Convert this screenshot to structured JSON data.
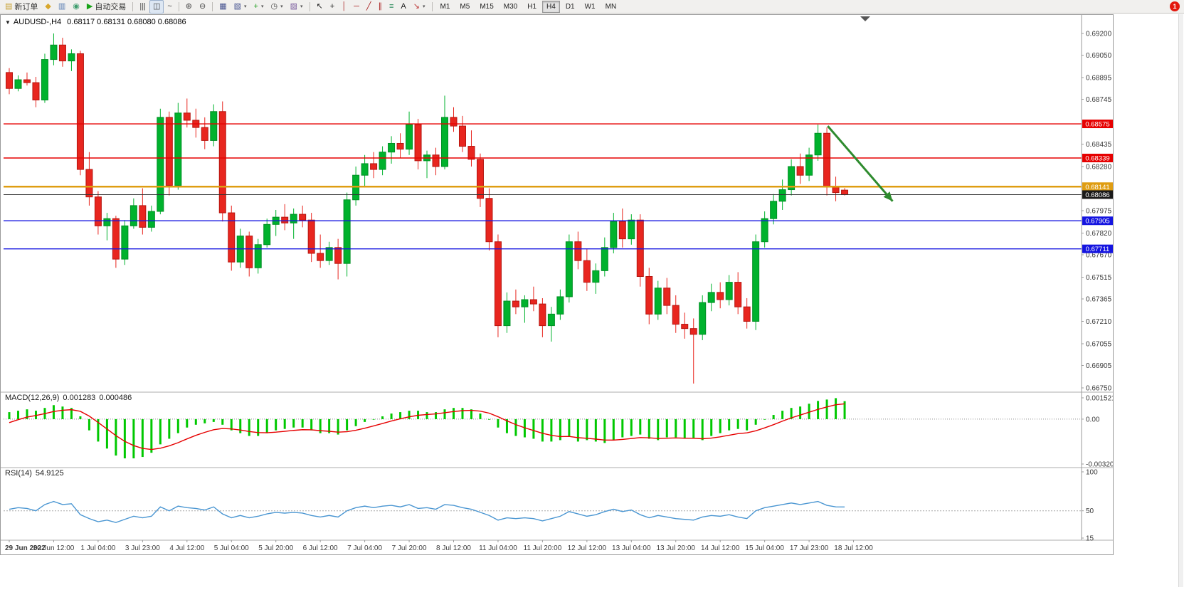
{
  "window": {
    "notification_badge": "1"
  },
  "toolbar": {
    "groups": [
      {
        "items": [
          {
            "name": "new-order-button",
            "icon": "new-order-icon",
            "label": "新订单"
          },
          {
            "name": "metaeditor-button",
            "icon": "metaeditor-icon"
          },
          {
            "name": "market-watch-button",
            "icon": "market-watch-icon"
          },
          {
            "name": "navigator-button",
            "icon": "navigator-icon"
          },
          {
            "name": "autotrading-button",
            "icon": "autotrading-icon",
            "label": "自动交易"
          }
        ]
      },
      {
        "items": [
          {
            "name": "bar-chart-button",
            "icon": "bar-chart-icon"
          },
          {
            "name": "candlestick-button",
            "icon": "candlestick-icon",
            "active": true
          },
          {
            "name": "line-chart-button",
            "icon": "line-chart-icon"
          }
        ]
      },
      {
        "items": [
          {
            "name": "zoom-in-button",
            "icon": "zoom-in-icon"
          },
          {
            "name": "zoom-out-button",
            "icon": "zoom-out-icon"
          }
        ]
      },
      {
        "items": [
          {
            "name": "tile-windows-button",
            "icon": "tile-windows-icon"
          },
          {
            "name": "new-chart-button",
            "icon": "new-chart-icon",
            "dropdown": true
          },
          {
            "name": "indicators-button",
            "icon": "indicators-icon",
            "dropdown": true
          },
          {
            "name": "periods-button",
            "icon": "clock-icon",
            "dropdown": true
          },
          {
            "name": "templates-button",
            "icon": "template-icon",
            "dropdown": true
          }
        ]
      },
      {
        "items": [
          {
            "name": "cursor-button",
            "icon": "cursor-icon"
          },
          {
            "name": "crosshair-button",
            "icon": "crosshair-icon"
          },
          {
            "name": "vertical-line-button",
            "icon": "vertical-line-icon"
          },
          {
            "name": "horizontal-line-button",
            "icon": "horizontal-line-icon"
          },
          {
            "name": "trendline-button",
            "icon": "trendline-icon"
          },
          {
            "name": "channel-button",
            "icon": "channel-icon"
          },
          {
            "name": "fibonacci-button",
            "icon": "fibonacci-icon"
          },
          {
            "name": "text-button",
            "icon": "text-icon"
          },
          {
            "name": "arrows-button",
            "icon": "arrows-icon",
            "dropdown": true
          }
        ]
      },
      {
        "items": [
          {
            "name": "tf-m1-button",
            "label": "M1",
            "tf": true
          },
          {
            "name": "tf-m5-button",
            "label": "M5",
            "tf": true
          },
          {
            "name": "tf-m15-button",
            "label": "M15",
            "tf": true
          },
          {
            "name": "tf-m30-button",
            "label": "M30",
            "tf": true
          },
          {
            "name": "tf-h1-button",
            "label": "H1",
            "tf": true
          },
          {
            "name": "tf-h4-button",
            "label": "H4",
            "tf": true,
            "active": true
          },
          {
            "name": "tf-d1-button",
            "label": "D1",
            "tf": true
          },
          {
            "name": "tf-w1-button",
            "label": "W1",
            "tf": true
          },
          {
            "name": "tf-mn-button",
            "label": "MN",
            "tf": true
          }
        ]
      }
    ]
  },
  "chart": {
    "collapse_glyph": "▼",
    "symbol_period": "AUDUSD-,H4",
    "ohlc_text": "0.68117 0.68131 0.68080 0.68086"
  },
  "macd": {
    "name": "MACD(12,26,9)",
    "value_main": "0.001283",
    "value_signal": "0.000486"
  },
  "rsi": {
    "name": "RSI(14)",
    "value": "54.9125"
  },
  "chart_data": {
    "type": "candlestick",
    "symbol": "AUDUSD-",
    "timeframe": "H4",
    "ohlc_header": {
      "open": 0.68117,
      "high": 0.68131,
      "low": 0.6808,
      "close": 0.68086
    },
    "ylim": [
      0.6675,
      0.692
    ],
    "y_ticks": [
      "0.69200",
      "0.69050",
      "0.68895",
      "0.68745",
      "0.68435",
      "0.68280",
      "0.67975",
      "0.67820",
      "0.67670",
      "0.67515",
      "0.67365",
      "0.67210",
      "0.67055",
      "0.66905",
      "0.66750"
    ],
    "x_labels": [
      "29 Jun 2022",
      "30 Jun 12:00",
      "1 Jul 04:00",
      "3 Jul 23:00",
      "4 Jul 12:00",
      "5 Jul 04:00",
      "5 Jul 20:00",
      "6 Jul 12:00",
      "7 Jul 04:00",
      "7 Jul 20:00",
      "8 Jul 12:00",
      "11 Jul 04:00",
      "11 Jul 20:00",
      "12 Jul 12:00",
      "13 Jul 04:00",
      "13 Jul 20:00",
      "14 Jul 12:00",
      "15 Jul 04:00",
      "17 Jul 23:00",
      "18 Jul 12:00"
    ],
    "x_label_step_candles": 5,
    "candles_ohlc": [
      [
        0.6893,
        0.6896,
        0.6878,
        0.6882
      ],
      [
        0.6882,
        0.6891,
        0.688,
        0.6888
      ],
      [
        0.6888,
        0.6893,
        0.6884,
        0.6886
      ],
      [
        0.6886,
        0.689,
        0.6869,
        0.6874
      ],
      [
        0.6874,
        0.6906,
        0.6872,
        0.6902
      ],
      [
        0.6902,
        0.692,
        0.6898,
        0.6912
      ],
      [
        0.6912,
        0.6917,
        0.6897,
        0.6901
      ],
      [
        0.6901,
        0.6909,
        0.6894,
        0.6906
      ],
      [
        0.6906,
        0.6908,
        0.6822,
        0.6826
      ],
      [
        0.6826,
        0.6838,
        0.6801,
        0.6807
      ],
      [
        0.6807,
        0.6811,
        0.6781,
        0.6787
      ],
      [
        0.6787,
        0.6796,
        0.6777,
        0.6792
      ],
      [
        0.6792,
        0.6794,
        0.6758,
        0.6764
      ],
      [
        0.6764,
        0.6791,
        0.676,
        0.6787
      ],
      [
        0.6787,
        0.6806,
        0.6785,
        0.6801
      ],
      [
        0.6801,
        0.6813,
        0.6781,
        0.6786
      ],
      [
        0.6786,
        0.6801,
        0.6783,
        0.6797
      ],
      [
        0.6797,
        0.6868,
        0.6795,
        0.6862
      ],
      [
        0.6862,
        0.6866,
        0.6808,
        0.6815
      ],
      [
        0.6815,
        0.6872,
        0.6812,
        0.6865
      ],
      [
        0.6865,
        0.6875,
        0.6855,
        0.686
      ],
      [
        0.686,
        0.6868,
        0.6848,
        0.6855
      ],
      [
        0.6855,
        0.6862,
        0.684,
        0.6846
      ],
      [
        0.6846,
        0.6871,
        0.6842,
        0.6866
      ],
      [
        0.6866,
        0.6873,
        0.679,
        0.6796
      ],
      [
        0.6796,
        0.6801,
        0.6756,
        0.6762
      ],
      [
        0.6762,
        0.6785,
        0.6758,
        0.678
      ],
      [
        0.678,
        0.6783,
        0.6752,
        0.6758
      ],
      [
        0.6758,
        0.6778,
        0.6754,
        0.6774
      ],
      [
        0.6774,
        0.6792,
        0.6772,
        0.6788
      ],
      [
        0.6788,
        0.6798,
        0.678,
        0.6793
      ],
      [
        0.6793,
        0.6802,
        0.6784,
        0.6789
      ],
      [
        0.6789,
        0.6799,
        0.6778,
        0.6795
      ],
      [
        0.6795,
        0.6801,
        0.6786,
        0.6791
      ],
      [
        0.6791,
        0.6796,
        0.6762,
        0.6768
      ],
      [
        0.6768,
        0.6781,
        0.6758,
        0.6763
      ],
      [
        0.6763,
        0.6776,
        0.676,
        0.6772
      ],
      [
        0.6772,
        0.6778,
        0.675,
        0.6761
      ],
      [
        0.6761,
        0.681,
        0.6752,
        0.6805
      ],
      [
        0.6805,
        0.6828,
        0.6801,
        0.6822
      ],
      [
        0.6822,
        0.6836,
        0.6814,
        0.683
      ],
      [
        0.683,
        0.6838,
        0.682,
        0.6826
      ],
      [
        0.6826,
        0.6842,
        0.6822,
        0.6838
      ],
      [
        0.6838,
        0.6849,
        0.683,
        0.6844
      ],
      [
        0.6844,
        0.6851,
        0.6834,
        0.684
      ],
      [
        0.684,
        0.6866,
        0.6836,
        0.6857
      ],
      [
        0.6857,
        0.6861,
        0.6826,
        0.6832
      ],
      [
        0.6832,
        0.6839,
        0.682,
        0.6836
      ],
      [
        0.6836,
        0.6841,
        0.6822,
        0.6828
      ],
      [
        0.6828,
        0.6877,
        0.6826,
        0.6862
      ],
      [
        0.6862,
        0.6869,
        0.6852,
        0.6856
      ],
      [
        0.6856,
        0.6863,
        0.6838,
        0.6842
      ],
      [
        0.6842,
        0.6853,
        0.6828,
        0.6833
      ],
      [
        0.6833,
        0.6837,
        0.68,
        0.6806
      ],
      [
        0.6806,
        0.6813,
        0.677,
        0.6776
      ],
      [
        0.6776,
        0.6781,
        0.671,
        0.6718
      ],
      [
        0.6718,
        0.6741,
        0.6713,
        0.6735
      ],
      [
        0.6735,
        0.6743,
        0.6726,
        0.6731
      ],
      [
        0.6731,
        0.6739,
        0.672,
        0.6736
      ],
      [
        0.6736,
        0.6745,
        0.6728,
        0.6733
      ],
      [
        0.6733,
        0.6737,
        0.671,
        0.6718
      ],
      [
        0.6718,
        0.6731,
        0.6707,
        0.6726
      ],
      [
        0.6726,
        0.6743,
        0.6722,
        0.6738
      ],
      [
        0.6738,
        0.6781,
        0.6734,
        0.6776
      ],
      [
        0.6776,
        0.6783,
        0.6757,
        0.6763
      ],
      [
        0.6763,
        0.6771,
        0.6742,
        0.6748
      ],
      [
        0.6748,
        0.6761,
        0.674,
        0.6756
      ],
      [
        0.6756,
        0.6779,
        0.6752,
        0.6772
      ],
      [
        0.6772,
        0.6796,
        0.6768,
        0.679
      ],
      [
        0.679,
        0.6799,
        0.6772,
        0.6778
      ],
      [
        0.6778,
        0.6795,
        0.6774,
        0.6791
      ],
      [
        0.6791,
        0.6795,
        0.6745,
        0.6752
      ],
      [
        0.6752,
        0.6758,
        0.6719,
        0.6726
      ],
      [
        0.6726,
        0.6749,
        0.6722,
        0.6744
      ],
      [
        0.6744,
        0.6751,
        0.6726,
        0.6732
      ],
      [
        0.6732,
        0.6739,
        0.6713,
        0.6719
      ],
      [
        0.6719,
        0.6727,
        0.6709,
        0.6716
      ],
      [
        0.6716,
        0.6723,
        0.6678,
        0.6712
      ],
      [
        0.6712,
        0.6739,
        0.6708,
        0.6734
      ],
      [
        0.6734,
        0.6747,
        0.6728,
        0.6741
      ],
      [
        0.6741,
        0.6748,
        0.673,
        0.6736
      ],
      [
        0.6736,
        0.6753,
        0.6732,
        0.6748
      ],
      [
        0.6748,
        0.6755,
        0.6726,
        0.6731
      ],
      [
        0.6731,
        0.6737,
        0.6716,
        0.6721
      ],
      [
        0.6721,
        0.6781,
        0.6715,
        0.6776
      ],
      [
        0.6776,
        0.6797,
        0.6772,
        0.6792
      ],
      [
        0.6792,
        0.6809,
        0.6788,
        0.6804
      ],
      [
        0.6804,
        0.6819,
        0.6798,
        0.6812
      ],
      [
        0.6812,
        0.6833,
        0.6808,
        0.6828
      ],
      [
        0.6828,
        0.6837,
        0.6816,
        0.6822
      ],
      [
        0.6822,
        0.6841,
        0.6818,
        0.6836
      ],
      [
        0.6836,
        0.6857,
        0.6832,
        0.6851
      ],
      [
        0.6851,
        0.6855,
        0.6808,
        0.6814
      ],
      [
        0.6814,
        0.6821,
        0.6804,
        0.681
      ],
      [
        0.68117,
        0.68131,
        0.6808,
        0.68086
      ]
    ],
    "levels": [
      {
        "price": 0.68575,
        "label": "0.68575",
        "color": "#e60000",
        "width": 1.4
      },
      {
        "price": 0.68339,
        "label": "0.68339",
        "color": "#e60000",
        "width": 1.4
      },
      {
        "price": 0.68141,
        "label": "0.68141",
        "color": "#df9d12",
        "width": 2.6
      },
      {
        "price": 0.67905,
        "label": "0.67905",
        "color": "#1414e0",
        "width": 1.4
      },
      {
        "price": 0.67711,
        "label": "0.67711",
        "color": "#1414e0",
        "width": 1.4
      }
    ],
    "current_price": {
      "price": 0.68086,
      "label": "0.68086",
      "color": "#1a1a1a"
    },
    "arrow": {
      "from_index": 92.1,
      "from_price": 0.6856,
      "to_index": 99.4,
      "to_price": 0.6804,
      "color": "#2e8b2e"
    },
    "colors": {
      "bull": "#00b22d",
      "bear": "#e8261f",
      "bull_stroke": "#008f24",
      "bear_stroke": "#b51610"
    },
    "macd_panel": {
      "type": "bar+line",
      "values": [
        0.0005,
        0.0006,
        0.0007,
        0.0006,
        0.0008,
        0.001,
        0.0009,
        0.0008,
        0.0002,
        -0.0008,
        -0.0016,
        -0.0021,
        -0.0026,
        -0.0028,
        -0.0028,
        -0.0027,
        -0.0024,
        -0.0018,
        -0.0014,
        -0.001,
        -0.0006,
        -0.0004,
        -0.0003,
        -0.0002,
        -0.0004,
        -0.0008,
        -0.001,
        -0.0012,
        -0.0012,
        -0.001,
        -0.0008,
        -0.0007,
        -0.0006,
        -0.0006,
        -0.0008,
        -0.001,
        -0.001,
        -0.0011,
        -0.0008,
        -0.0005,
        -0.0002,
        0.0,
        0.0002,
        0.0004,
        0.0005,
        0.0006,
        0.0006,
        0.0005,
        0.0005,
        0.0007,
        0.0008,
        0.0008,
        0.0007,
        0.0004,
        0.0,
        -0.0006,
        -0.001,
        -0.0012,
        -0.0013,
        -0.0014,
        -0.0016,
        -0.0016,
        -0.0015,
        -0.0012,
        -0.0016,
        -0.0015,
        -0.0016,
        -0.0017,
        -0.0015,
        -0.0013,
        -0.0012,
        -0.0011,
        -0.0014,
        -0.0015,
        -0.0013,
        -0.0013,
        -0.0014,
        -0.0014,
        -0.0015,
        -0.0012,
        -0.001,
        -0.0008,
        -0.0007,
        -0.0008,
        -0.0004,
        0.0,
        0.0003,
        0.0006,
        0.0008,
        0.0009,
        0.0011,
        0.0013,
        0.0014,
        0.0015,
        0.001283
      ],
      "value_last": 0.001283,
      "signal_last": 0.000486,
      "ylim": [
        -0.003205,
        0.001521
      ],
      "y_ticks": [
        "0.001521",
        "0.00",
        "-0.003205"
      ],
      "bar_color": "#00c800",
      "signal_color": "#e60000"
    },
    "rsi_panel": {
      "type": "line",
      "values": [
        52,
        54,
        53,
        50,
        58,
        62,
        58,
        59,
        45,
        40,
        36,
        38,
        35,
        39,
        43,
        41,
        43,
        55,
        50,
        56,
        54,
        53,
        51,
        55,
        46,
        41,
        44,
        41,
        43,
        46,
        48,
        47,
        48,
        47,
        44,
        42,
        44,
        42,
        50,
        54,
        56,
        54,
        56,
        57,
        55,
        58,
        53,
        54,
        52,
        58,
        57,
        54,
        52,
        48,
        44,
        38,
        41,
        40,
        41,
        40,
        37,
        40,
        43,
        49,
        46,
        43,
        45,
        49,
        52,
        49,
        51,
        45,
        41,
        44,
        42,
        40,
        39,
        38,
        42,
        44,
        43,
        45,
        42,
        40,
        50,
        54,
        56,
        58,
        60,
        58,
        60,
        62,
        57,
        55,
        54.9125
      ],
      "value_last": 54.9125,
      "range": [
        15,
        100
      ],
      "y_ticks": [
        "100",
        "50",
        "15"
      ],
      "level": 50,
      "line_color": "#4a96d2"
    }
  }
}
